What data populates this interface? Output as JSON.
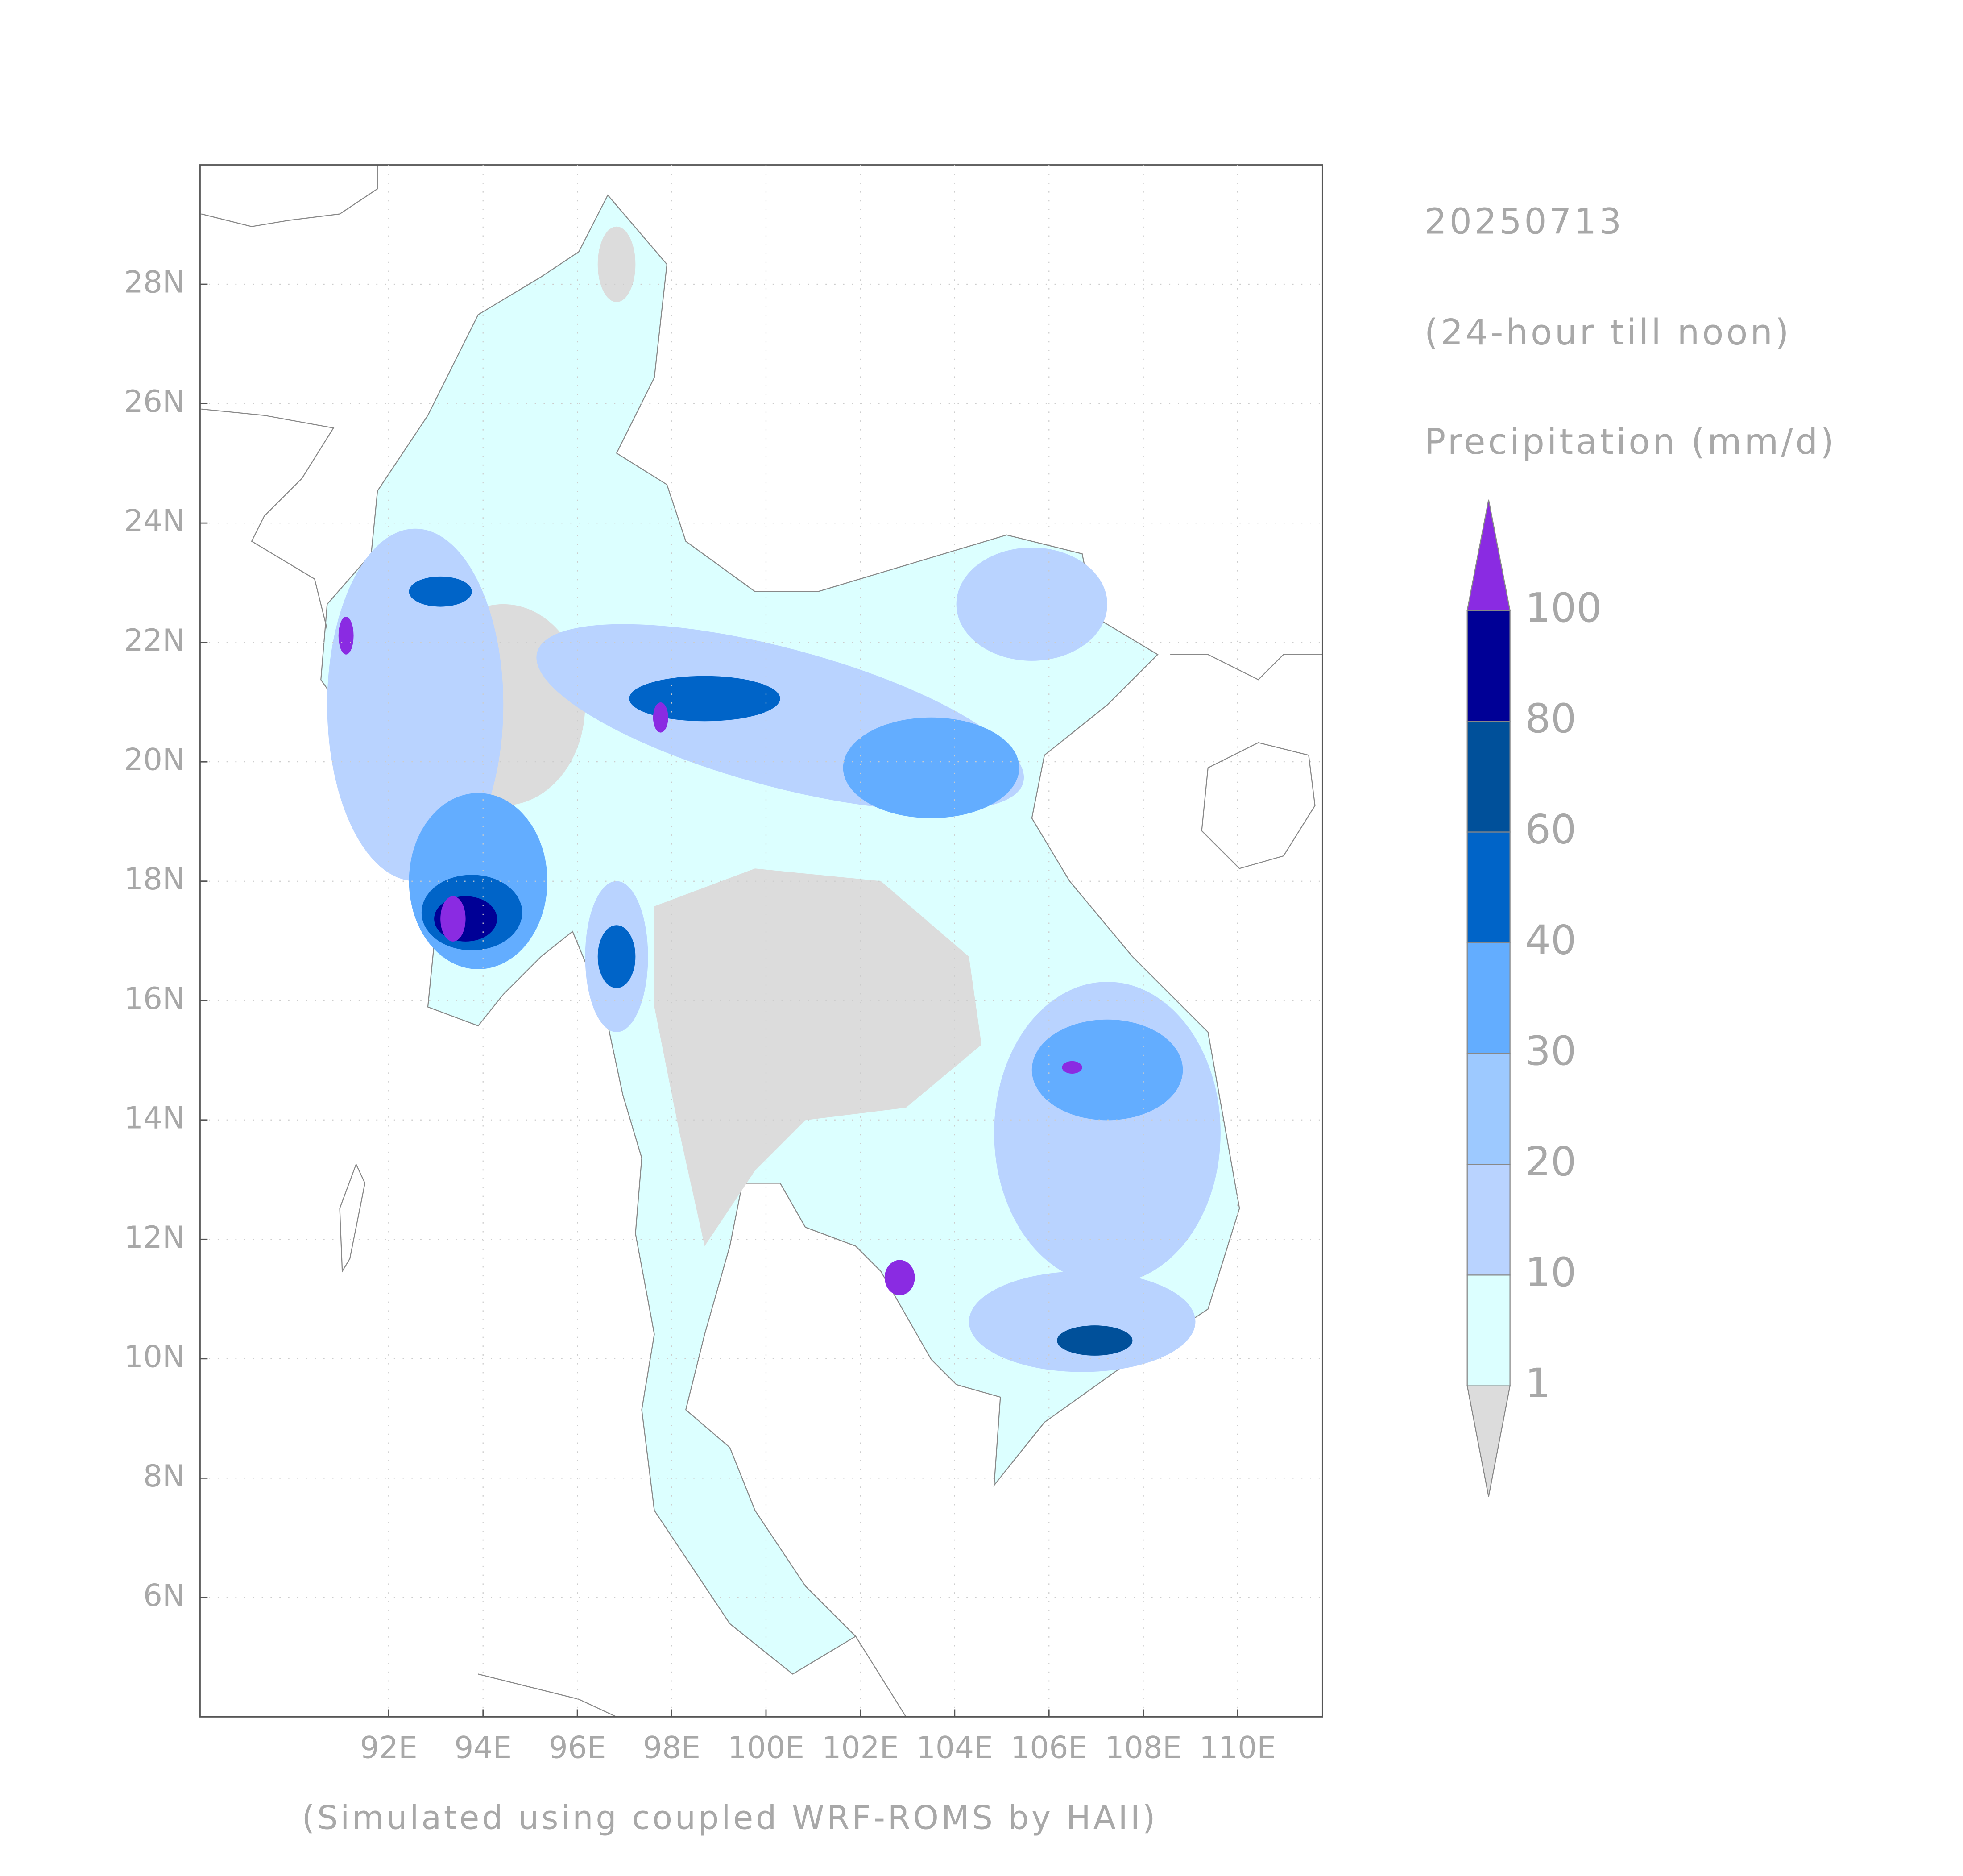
{
  "title": "20250713",
  "subtitle": "(24-hour till noon)",
  "variable": "Precipitation (mm/d)",
  "footer": "(Simulated using coupled WRF-ROMS by HAII)",
  "map": {
    "xlim": [
      88,
      111.8
    ],
    "ylim": [
      4,
      30
    ],
    "xticks": [
      {
        "value": 92,
        "label": "92E"
      },
      {
        "value": 94,
        "label": "94E"
      },
      {
        "value": 96,
        "label": "96E"
      },
      {
        "value": 98,
        "label": "98E"
      },
      {
        "value": 100,
        "label": "100E"
      },
      {
        "value": 102,
        "label": "102E"
      },
      {
        "value": 104,
        "label": "104E"
      },
      {
        "value": 106,
        "label": "106E"
      },
      {
        "value": 108,
        "label": "108E"
      },
      {
        "value": 110,
        "label": "110E"
      }
    ],
    "yticks": [
      {
        "value": 6,
        "label": "6N"
      },
      {
        "value": 8,
        "label": "8N"
      },
      {
        "value": 10,
        "label": "10N"
      },
      {
        "value": 12,
        "label": "12N"
      },
      {
        "value": 14,
        "label": "14N"
      },
      {
        "value": 16,
        "label": "16N"
      },
      {
        "value": 18,
        "label": "18N"
      },
      {
        "value": 20,
        "label": "20N"
      },
      {
        "value": 22,
        "label": "22N"
      },
      {
        "value": 24,
        "label": "24N"
      },
      {
        "value": 26,
        "label": "26N"
      },
      {
        "value": 28,
        "label": "28N"
      }
    ],
    "grid": true
  },
  "colorbar": {
    "levels": [
      1,
      10,
      20,
      30,
      40,
      60,
      80,
      100
    ],
    "colors": [
      "#dcdcdc",
      "#dcffff",
      "#b9d3ff",
      "#9dc9ff",
      "#63adff",
      "#0064c8",
      "#00509a",
      "#000096",
      "#8a2be2"
    ]
  }
}
